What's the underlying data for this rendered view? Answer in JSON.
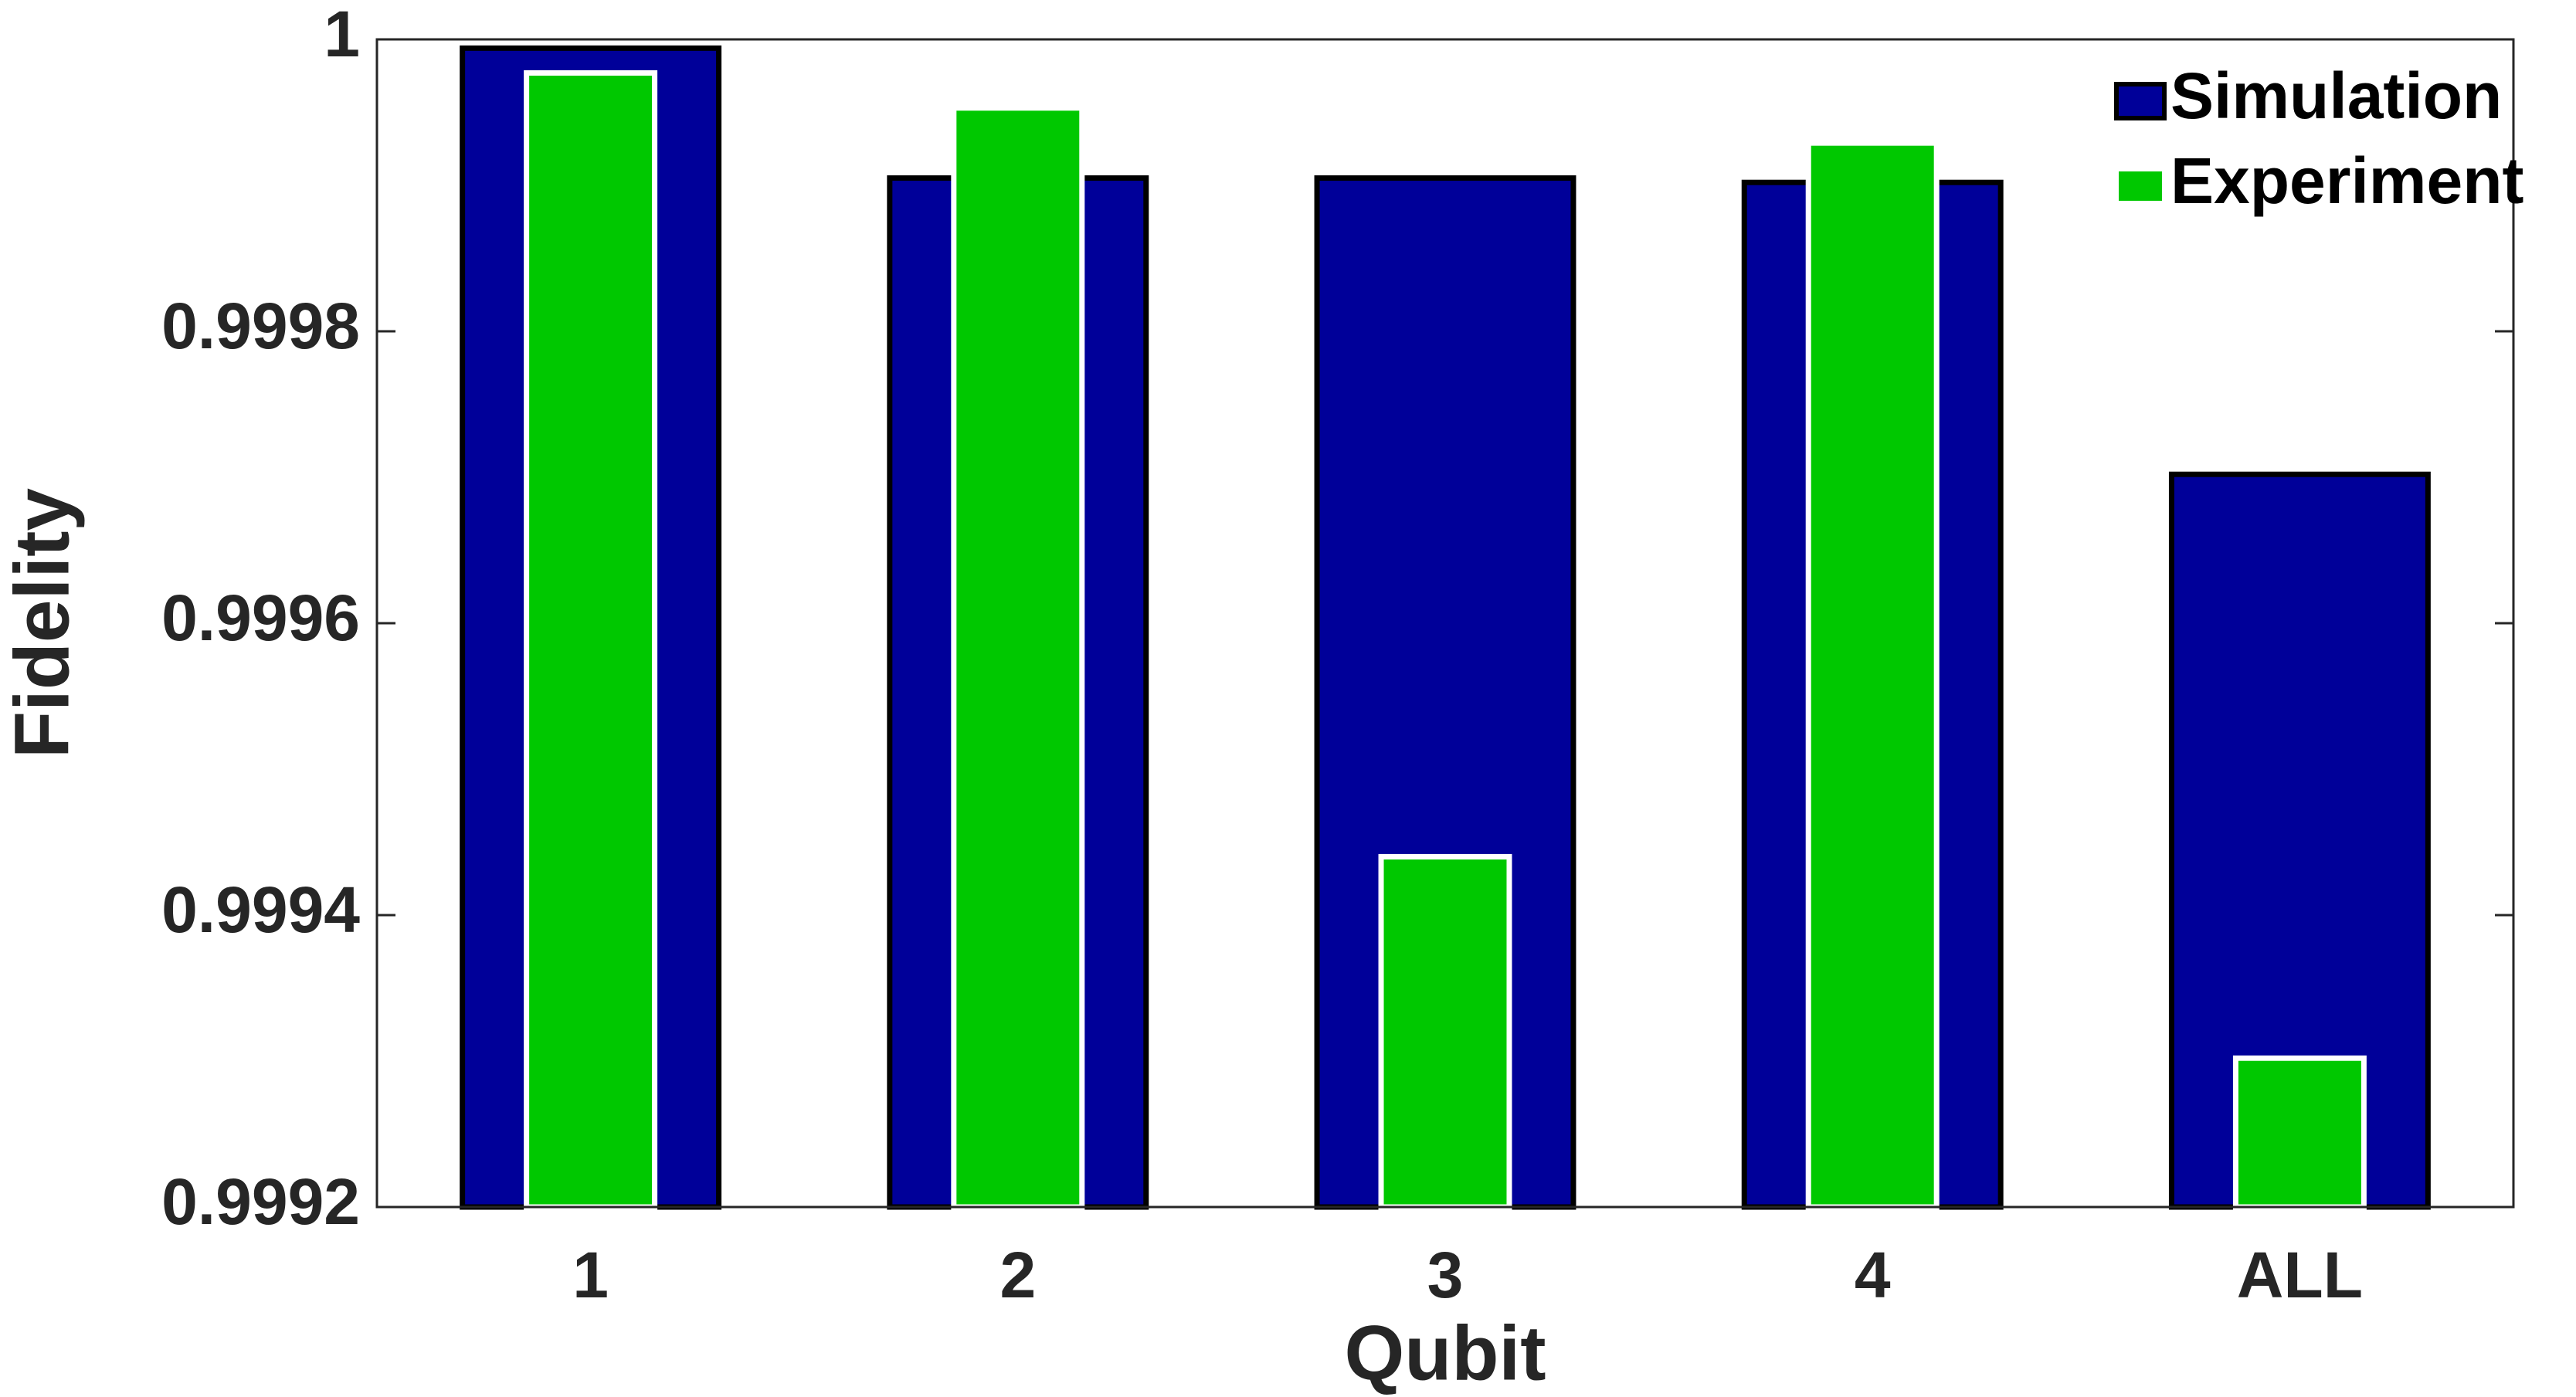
{
  "chart_data": {
    "type": "bar",
    "xlabel": "Qubit",
    "ylabel": "Fidelity",
    "categories": [
      "1",
      "2",
      "3",
      "4",
      "ALL"
    ],
    "series": [
      {
        "name": "Simulation",
        "color": "#000099",
        "values": [
          0.999994,
          0.999905,
          0.999905,
          0.999902,
          0.999702
        ]
      },
      {
        "name": "Experiment",
        "color": "#00c800",
        "values": [
          0.999977,
          0.999953,
          0.99944,
          0.999929,
          0.999302
        ]
      }
    ],
    "ylim": [
      0.9992,
      1
    ],
    "yticks": [
      0.9992,
      0.9994,
      0.9996,
      0.9998,
      1
    ],
    "grid": false,
    "legend": "upper right"
  }
}
